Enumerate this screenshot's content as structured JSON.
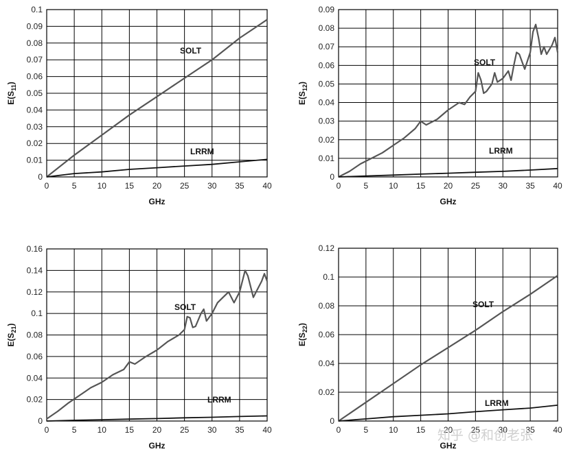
{
  "chart_data": [
    {
      "type": "line",
      "ylabel": "E(S11)",
      "xlabel": "GHz",
      "xlim": [
        0,
        40
      ],
      "ylim": [
        0,
        0.1
      ],
      "xticks": [
        "0",
        "5",
        "10",
        "15",
        "20",
        "25",
        "30",
        "35",
        "40"
      ],
      "yticks": [
        "0",
        "0.01",
        "0.02",
        "0.03",
        "0.04",
        "0.05",
        "0.06",
        "0.07",
        "0.08",
        "0.09",
        "0.1"
      ],
      "grid": true,
      "series": [
        {
          "name": "SOLT",
          "x": [
            0,
            5,
            10,
            15,
            20,
            25,
            30,
            35,
            40
          ],
          "y": [
            0,
            0.013,
            0.025,
            0.037,
            0.048,
            0.059,
            0.07,
            0.083,
            0.094
          ]
        },
        {
          "name": "LRRM",
          "x": [
            0,
            5,
            10,
            15,
            20,
            25,
            30,
            35,
            40
          ],
          "y": [
            0,
            0.002,
            0.003,
            0.0045,
            0.0055,
            0.0065,
            0.0075,
            0.009,
            0.0105
          ]
        }
      ]
    },
    {
      "type": "line",
      "ylabel": "E(S12)",
      "xlabel": "GHz",
      "xlim": [
        0,
        40
      ],
      "ylim": [
        0,
        0.09
      ],
      "xticks": [
        "0",
        "5",
        "10",
        "15",
        "20",
        "25",
        "30",
        "35",
        "40"
      ],
      "yticks": [
        "0",
        "0.01",
        "0.02",
        "0.03",
        "0.04",
        "0.05",
        "0.06",
        "0.07",
        "0.08",
        "0.09"
      ],
      "grid": true,
      "series": [
        {
          "name": "SOLT",
          "x": [
            0,
            2,
            4,
            6,
            8,
            10,
            12,
            14,
            15,
            16,
            18,
            20,
            22,
            23,
            24,
            25,
            25.5,
            26,
            26.5,
            27,
            28,
            28.5,
            29,
            30,
            31,
            31.5,
            32,
            32.5,
            33,
            34,
            35,
            35.5,
            36,
            36.5,
            37,
            37.5,
            38,
            39,
            39.5,
            40
          ],
          "y": [
            0,
            0.003,
            0.007,
            0.01,
            0.013,
            0.017,
            0.021,
            0.026,
            0.03,
            0.028,
            0.031,
            0.036,
            0.04,
            0.039,
            0.043,
            0.046,
            0.056,
            0.052,
            0.045,
            0.046,
            0.05,
            0.056,
            0.051,
            0.053,
            0.057,
            0.052,
            0.06,
            0.067,
            0.066,
            0.058,
            0.067,
            0.078,
            0.082,
            0.075,
            0.066,
            0.07,
            0.066,
            0.071,
            0.075,
            0.067
          ]
        },
        {
          "name": "LRRM",
          "x": [
            0,
            5,
            10,
            15,
            20,
            25,
            30,
            35,
            40
          ],
          "y": [
            0,
            0.0005,
            0.001,
            0.0015,
            0.002,
            0.0025,
            0.003,
            0.0037,
            0.0045
          ]
        }
      ]
    },
    {
      "type": "line",
      "ylabel": "E(S21)",
      "xlabel": "GHz",
      "xlim": [
        0,
        40
      ],
      "ylim": [
        0,
        0.16
      ],
      "xticks": [
        "0",
        "5",
        "10",
        "15",
        "20",
        "25",
        "30",
        "35",
        "40"
      ],
      "yticks": [
        "0",
        "0.02",
        "0.04",
        "0.06",
        "0.08",
        "0.1",
        "0.12",
        "0.14",
        "0.16"
      ],
      "grid": true,
      "series": [
        {
          "name": "SOLT",
          "x": [
            0,
            2,
            4,
            6,
            8,
            10,
            12,
            14,
            15,
            16,
            18,
            20,
            22,
            24,
            25,
            25.5,
            26,
            26.5,
            27,
            28,
            28.5,
            29,
            30,
            31,
            32,
            33,
            34,
            35,
            35.5,
            36,
            36.5,
            37,
            37.5,
            38,
            39,
            39.5,
            40
          ],
          "y": [
            0.002,
            0.009,
            0.017,
            0.024,
            0.031,
            0.036,
            0.043,
            0.048,
            0.055,
            0.053,
            0.06,
            0.066,
            0.074,
            0.08,
            0.085,
            0.097,
            0.096,
            0.087,
            0.088,
            0.1,
            0.104,
            0.093,
            0.1,
            0.11,
            0.115,
            0.12,
            0.11,
            0.12,
            0.13,
            0.14,
            0.135,
            0.125,
            0.115,
            0.12,
            0.13,
            0.137,
            0.13
          ]
        },
        {
          "name": "LRRM",
          "x": [
            0,
            5,
            10,
            15,
            20,
            25,
            30,
            35,
            40
          ],
          "y": [
            0,
            0.0007,
            0.0012,
            0.0018,
            0.0023,
            0.003,
            0.0035,
            0.0042,
            0.0048
          ]
        }
      ]
    },
    {
      "type": "line",
      "ylabel": "E(S22)",
      "xlabel": "GHz",
      "xlim": [
        0,
        40
      ],
      "ylim": [
        0,
        0.12
      ],
      "xticks": [
        "0",
        "5",
        "10",
        "15",
        "20",
        "25",
        "30",
        "35",
        "40"
      ],
      "yticks": [
        "0",
        "0.02",
        "0.04",
        "0.06",
        "0.08",
        "0.1",
        "0.12"
      ],
      "grid": true,
      "series": [
        {
          "name": "SOLT",
          "x": [
            0,
            5,
            10,
            15,
            20,
            25,
            30,
            35,
            40
          ],
          "y": [
            0,
            0.013,
            0.026,
            0.039,
            0.051,
            0.063,
            0.076,
            0.088,
            0.101
          ]
        },
        {
          "name": "LRRM",
          "x": [
            0,
            5,
            10,
            15,
            20,
            25,
            30,
            35,
            40
          ],
          "y": [
            0,
            0.0015,
            0.003,
            0.004,
            0.005,
            0.0065,
            0.0078,
            0.009,
            0.011
          ]
        }
      ]
    }
  ],
  "watermark": "知乎 @和创老张",
  "colors": {
    "solt": "#555555",
    "lrrm": "#111111",
    "grid": "#000000"
  }
}
